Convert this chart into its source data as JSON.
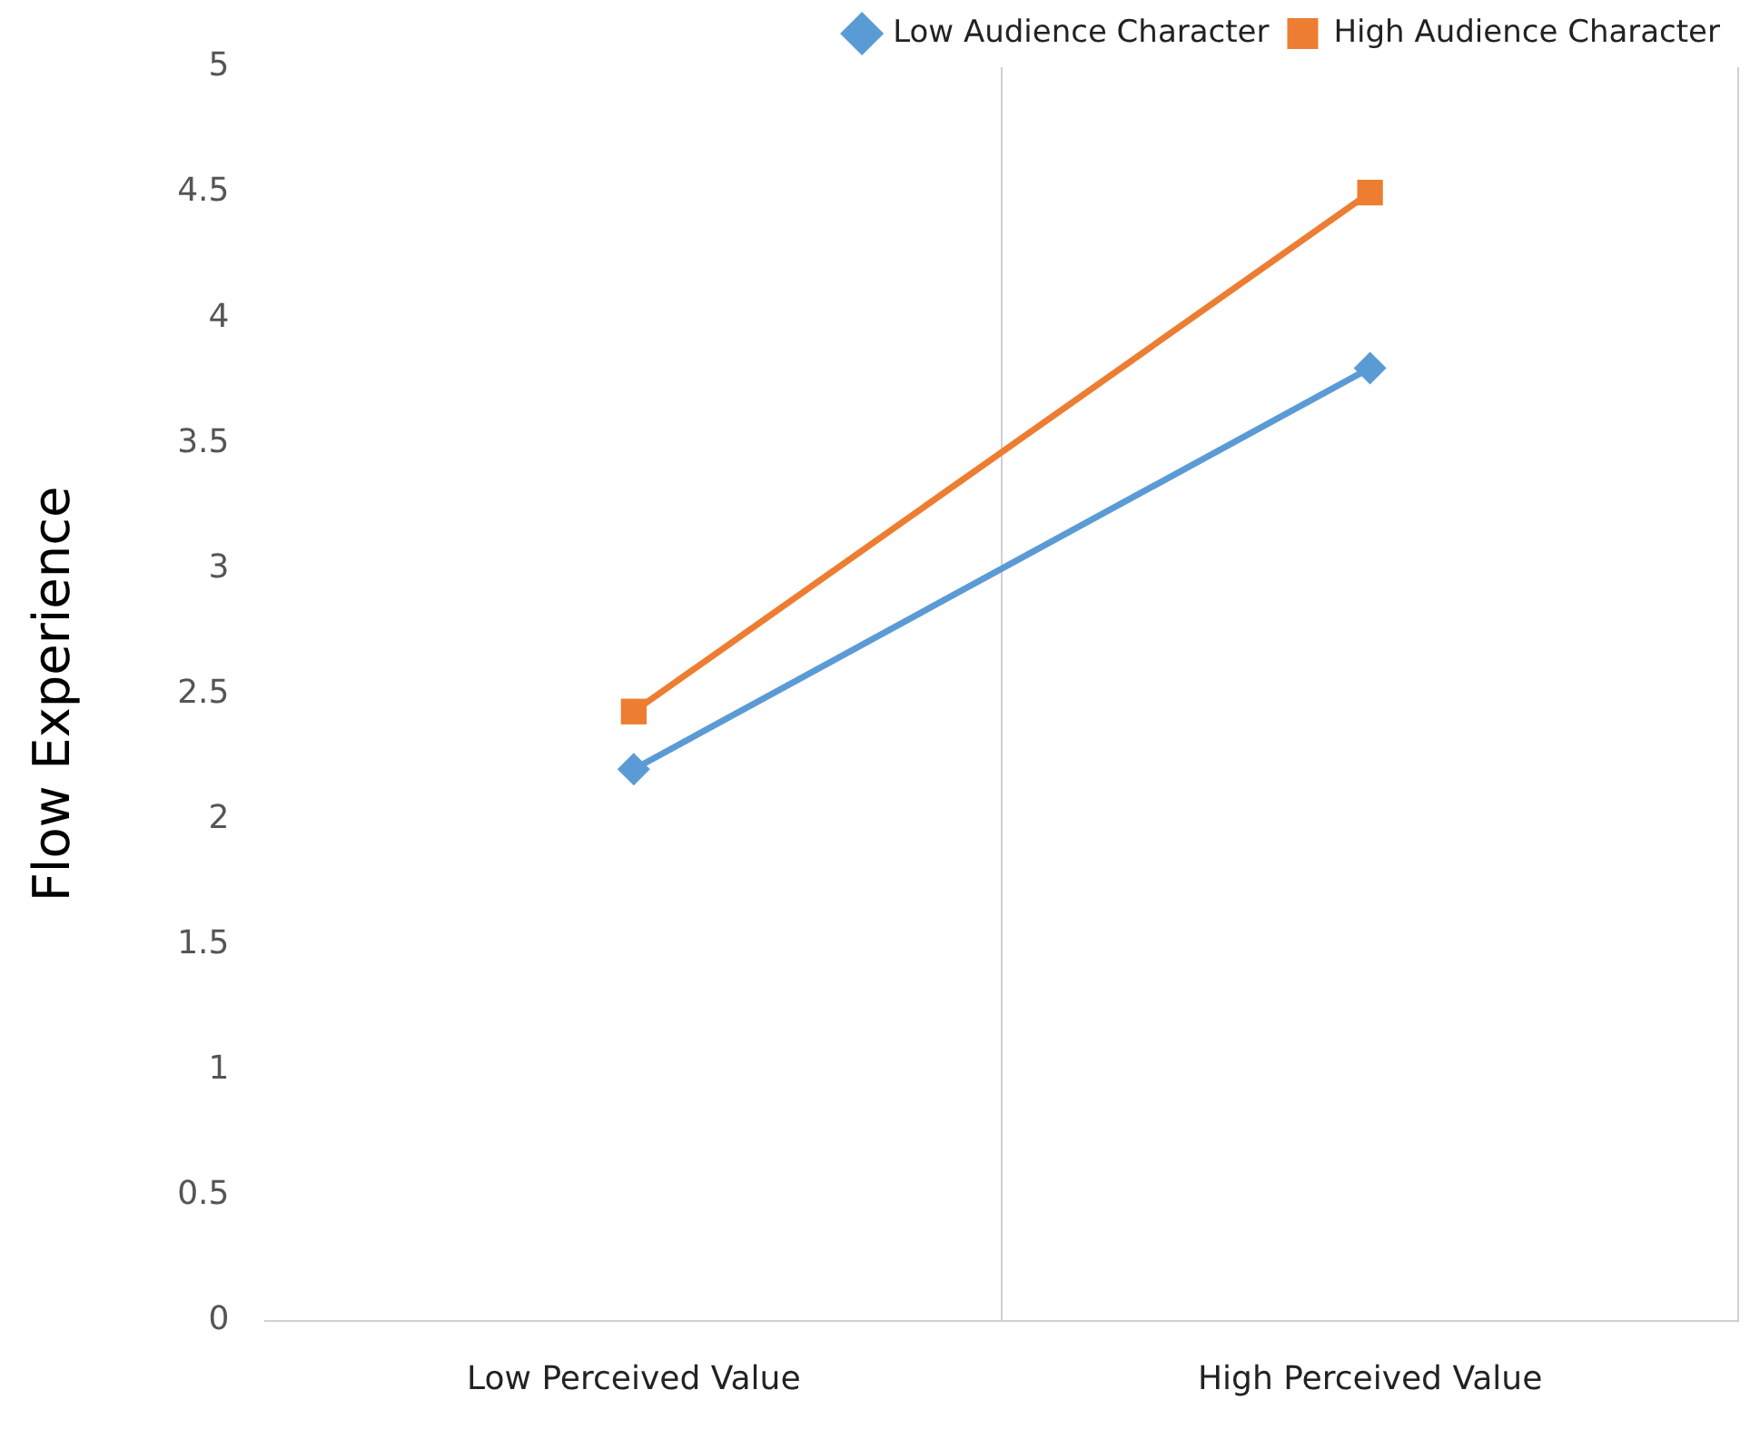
{
  "chart_data": {
    "type": "line",
    "ylabel": "Flow Experience",
    "categories": [
      "Low Perceived Value",
      "High Perceived Value"
    ],
    "series": [
      {
        "name": "Low Audience Character",
        "color": "#5b9bd5",
        "marker": "diamond",
        "values": [
          2.2,
          3.8
        ]
      },
      {
        "name": "High Audience Character",
        "color": "#ed7d31",
        "marker": "square",
        "values": [
          2.43,
          4.5
        ]
      }
    ],
    "ylim": [
      0,
      5
    ],
    "yticks": [
      0,
      0.5,
      1,
      1.5,
      2,
      2.5,
      3,
      3.5,
      4,
      4.5,
      5
    ],
    "grid": "x",
    "legend": "top",
    "line_style": "solid"
  }
}
